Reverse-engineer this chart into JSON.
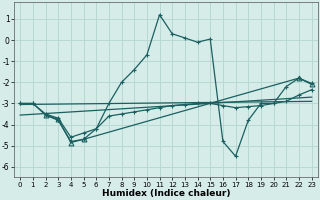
{
  "xlabel": "Humidex (Indice chaleur)",
  "background_color": "#d6ece9",
  "grid_color": "#b8d8d4",
  "line_color": "#1a6060",
  "xlim": [
    -0.5,
    23.5
  ],
  "ylim": [
    -6.5,
    1.8
  ],
  "xticks": [
    0,
    1,
    2,
    3,
    4,
    5,
    6,
    7,
    8,
    9,
    10,
    11,
    12,
    13,
    14,
    15,
    16,
    17,
    18,
    19,
    20,
    21,
    22,
    23
  ],
  "yticks": [
    -6,
    -5,
    -4,
    -3,
    -2,
    -1,
    0,
    1
  ],
  "series1_x": [
    0,
    1,
    2,
    3,
    4,
    5,
    6,
    7,
    8,
    9,
    10,
    11,
    12,
    13,
    14,
    15,
    16,
    17,
    18,
    19,
    20,
    21,
    22,
    23
  ],
  "series1_y": [
    -3.0,
    -3.0,
    -3.5,
    -3.7,
    -4.6,
    -4.4,
    -4.2,
    -3.0,
    -2.0,
    -1.4,
    -0.7,
    1.2,
    0.3,
    0.1,
    -0.1,
    0.05,
    -4.8,
    -5.5,
    -3.8,
    -3.0,
    -3.0,
    -2.2,
    -1.8,
    -2.05
  ],
  "series2_x": [
    0,
    1,
    2,
    3,
    4,
    5,
    6,
    7,
    8,
    9,
    10,
    11,
    12,
    13,
    14,
    15,
    16,
    17,
    18,
    19,
    20,
    21,
    22,
    23
  ],
  "series2_y": [
    -3.0,
    -3.0,
    -3.55,
    -3.8,
    -4.8,
    -4.7,
    -4.2,
    -3.6,
    -3.5,
    -3.4,
    -3.3,
    -3.2,
    -3.1,
    -3.05,
    -3.0,
    -3.0,
    -3.1,
    -3.2,
    -3.15,
    -3.1,
    -3.0,
    -2.9,
    -2.6,
    -2.35
  ],
  "series3_x": [
    0,
    23
  ],
  "series3_y": [
    -3.05,
    -2.9
  ],
  "series4_x": [
    0,
    23
  ],
  "series4_y": [
    -3.55,
    -2.7
  ],
  "series5_x": [
    2,
    3,
    4,
    5,
    22,
    23
  ],
  "series5_y": [
    -3.55,
    -3.75,
    -4.85,
    -4.7,
    -1.8,
    -2.1
  ]
}
